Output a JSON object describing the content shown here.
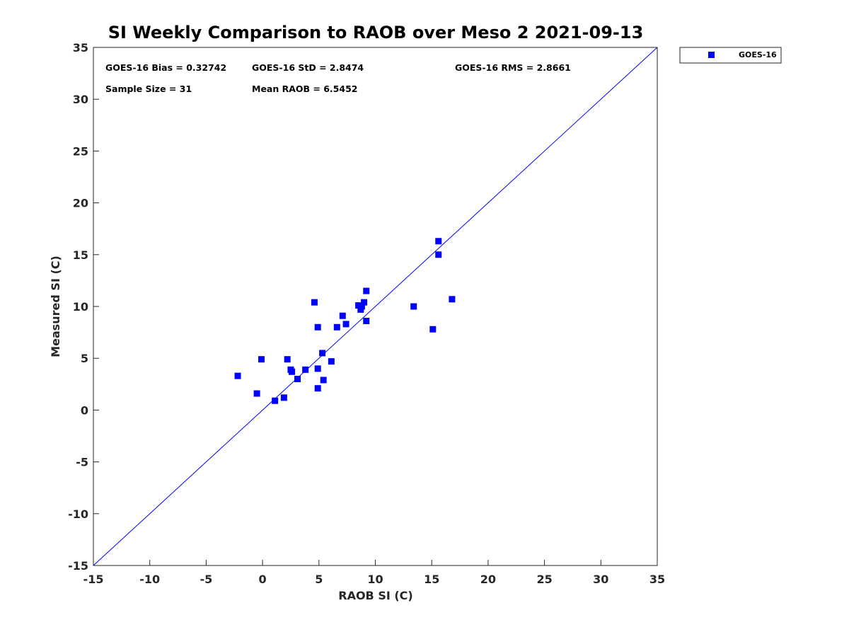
{
  "chart_data": {
    "type": "scatter",
    "title": "SI Weekly Comparison to RAOB over Meso 2 2021-09-13",
    "xlabel": "RAOB SI (C)",
    "ylabel": "Measured SI (C)",
    "xlim": [
      -15,
      35
    ],
    "ylim": [
      -15,
      35
    ],
    "xticks": [
      -15,
      -10,
      -5,
      0,
      5,
      10,
      15,
      20,
      25,
      30,
      35
    ],
    "yticks": [
      -15,
      -10,
      -5,
      0,
      5,
      10,
      15,
      20,
      25,
      30,
      35
    ],
    "grid": false,
    "legend": {
      "position": "outside-top-right",
      "label": "GOES-16"
    },
    "reference_line": {
      "type": "one-to-one",
      "from": [
        -15,
        -15
      ],
      "to": [
        35,
        35
      ]
    },
    "stats": {
      "bias": "GOES-16 Bias = 0.32742",
      "std": "GOES-16 StD = 2.8474",
      "rms": "GOES-16 RMS = 2.8661",
      "sample_size": "Sample Size = 31",
      "mean_raob": "Mean RAOB = 6.5452"
    },
    "colors": {
      "marker": "#0000ff",
      "line": "#0000ff",
      "axis": "#262626"
    },
    "series": [
      {
        "name": "GOES-16",
        "points": [
          [
            -2.2,
            3.3
          ],
          [
            -0.5,
            1.6
          ],
          [
            -0.1,
            4.9
          ],
          [
            1.1,
            0.9
          ],
          [
            1.9,
            1.2
          ],
          [
            2.2,
            4.9
          ],
          [
            2.5,
            3.9
          ],
          [
            2.6,
            3.7
          ],
          [
            3.1,
            3.0
          ],
          [
            3.8,
            3.9
          ],
          [
            4.6,
            10.4
          ],
          [
            4.9,
            8.0
          ],
          [
            4.9,
            4.0
          ],
          [
            4.9,
            2.1
          ],
          [
            5.3,
            5.5
          ],
          [
            5.4,
            2.9
          ],
          [
            6.1,
            4.7
          ],
          [
            6.6,
            8.0
          ],
          [
            7.1,
            9.1
          ],
          [
            7.4,
            8.3
          ],
          [
            8.5,
            10.1
          ],
          [
            8.7,
            9.7
          ],
          [
            8.8,
            10.0
          ],
          [
            9.0,
            10.4
          ],
          [
            9.2,
            11.5
          ],
          [
            9.2,
            8.6
          ],
          [
            13.4,
            10.0
          ],
          [
            15.1,
            7.8
          ],
          [
            15.6,
            16.3
          ],
          [
            15.6,
            15.0
          ],
          [
            16.8,
            10.7
          ]
        ]
      }
    ]
  }
}
